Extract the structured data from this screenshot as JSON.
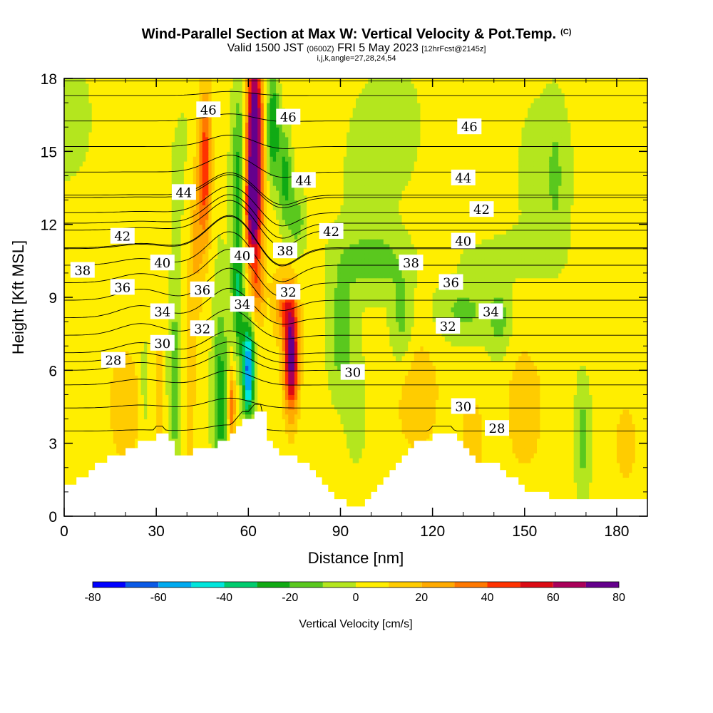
{
  "header": {
    "title": "Wind-Parallel Section at Max W: Vertical Velocity & Pot.Temp.",
    "copyright": "(C)",
    "valid_prefix": "Valid 1500 JST",
    "valid_utc": "(0600Z)",
    "valid_date": "FRI 5 May 2023",
    "forecast": "[12hrFcst@2145z]",
    "params": "i,j,k,angle=27,28,24,54"
  },
  "chart_data": {
    "type": "heatmap",
    "title": "Wind-Parallel Section at Max W: Vertical Velocity & Pot.Temp.",
    "xlabel": "Distance [nm]",
    "ylabel": "Height [Kft MSL]",
    "xlim": [
      0,
      190
    ],
    "ylim": [
      0,
      18
    ],
    "xticks": [
      0,
      30,
      60,
      90,
      120,
      150,
      180
    ],
    "yticks": [
      0,
      3,
      6,
      9,
      12,
      15,
      18
    ],
    "colorbar": {
      "label": "Vertical Velocity [cm/s]",
      "ticks": [
        -80,
        -60,
        -40,
        -20,
        0,
        20,
        40,
        60,
        80
      ],
      "levels": [
        -80,
        -70,
        -60,
        -50,
        -40,
        -30,
        -20,
        -10,
        0,
        10,
        20,
        30,
        40,
        50,
        60,
        70,
        80
      ],
      "colors": [
        "#0000ff",
        "#0a5ae6",
        "#00aaf0",
        "#00e6dc",
        "#00cc6e",
        "#10aa14",
        "#5ac81e",
        "#b4e61e",
        "#ffee00",
        "#ffcc00",
        "#ffaa00",
        "#ff7800",
        "#ff3200",
        "#dc0a14",
        "#aa005a",
        "#64008c"
      ]
    },
    "contour_field": "Potential Temperature",
    "contour_labels": [
      {
        "value": 46,
        "x": 47,
        "y": 16.7
      },
      {
        "value": 46,
        "x": 73,
        "y": 16.4
      },
      {
        "value": 46,
        "x": 132,
        "y": 16.0
      },
      {
        "value": 44,
        "x": 39,
        "y": 13.3
      },
      {
        "value": 44,
        "x": 78,
        "y": 13.8
      },
      {
        "value": 44,
        "x": 130,
        "y": 13.9
      },
      {
        "value": 42,
        "x": 19,
        "y": 11.5
      },
      {
        "value": 42,
        "x": 87,
        "y": 11.7
      },
      {
        "value": 42,
        "x": 136,
        "y": 12.6
      },
      {
        "value": 40,
        "x": 32,
        "y": 10.4
      },
      {
        "value": 40,
        "x": 58,
        "y": 10.7
      },
      {
        "value": 40,
        "x": 130,
        "y": 11.3
      },
      {
        "value": 38,
        "x": 6,
        "y": 10.1
      },
      {
        "value": 38,
        "x": 72,
        "y": 10.9
      },
      {
        "value": 38,
        "x": 113,
        "y": 10.4
      },
      {
        "value": 36,
        "x": 19,
        "y": 9.4
      },
      {
        "value": 36,
        "x": 45,
        "y": 9.3
      },
      {
        "value": 36,
        "x": 126,
        "y": 9.6
      },
      {
        "value": 34,
        "x": 32,
        "y": 8.4
      },
      {
        "value": 34,
        "x": 58,
        "y": 8.7
      },
      {
        "value": 34,
        "x": 139,
        "y": 8.4
      },
      {
        "value": 32,
        "x": 45,
        "y": 7.7
      },
      {
        "value": 32,
        "x": 73,
        "y": 9.2
      },
      {
        "value": 32,
        "x": 125,
        "y": 7.8
      },
      {
        "value": 30,
        "x": 32,
        "y": 7.1
      },
      {
        "value": 30,
        "x": 94,
        "y": 5.9
      },
      {
        "value": 30,
        "x": 130,
        "y": 4.5
      },
      {
        "value": 28,
        "x": 16,
        "y": 6.4
      },
      {
        "value": 28,
        "x": 141,
        "y": 3.6
      }
    ],
    "terrain_kft": {
      "x": [
        0,
        2,
        4,
        6,
        8,
        10,
        12,
        14,
        16,
        18,
        20,
        22,
        24,
        26,
        28,
        30,
        32,
        34,
        36,
        38,
        40,
        42,
        44,
        46,
        48,
        50,
        52,
        54,
        56,
        58,
        60,
        62,
        64,
        66,
        68,
        70,
        72,
        74,
        76,
        78,
        80,
        82,
        84,
        86,
        88,
        90,
        92,
        94,
        96,
        98,
        100,
        102,
        104,
        106,
        108,
        110,
        112,
        114,
        116,
        118,
        120,
        122,
        124,
        126,
        128,
        130,
        132,
        134,
        136,
        138,
        140,
        142,
        144,
        146,
        148,
        150,
        152,
        154,
        156,
        158,
        160,
        162,
        164,
        166,
        168,
        170,
        172,
        174,
        176,
        178,
        180,
        182,
        184,
        186,
        188,
        190
      ],
      "height": [
        1.3,
        1.3,
        1.6,
        1.6,
        1.9,
        2.2,
        2.2,
        2.5,
        2.5,
        2.5,
        2.8,
        2.8,
        3.1,
        3.1,
        3.1,
        3.4,
        3.4,
        3.1,
        2.5,
        2.5,
        2.5,
        2.8,
        2.8,
        2.8,
        2.8,
        3.1,
        3.1,
        3.4,
        3.7,
        4.0,
        4.0,
        4.3,
        4.3,
        3.1,
        2.8,
        2.5,
        2.5,
        2.5,
        2.2,
        2.2,
        1.9,
        1.6,
        1.3,
        1.0,
        0.7,
        0.7,
        0.4,
        0.4,
        0.4,
        0.7,
        1.0,
        1.3,
        1.6,
        1.9,
        2.2,
        2.5,
        2.8,
        3.1,
        3.1,
        3.1,
        3.4,
        3.4,
        3.4,
        3.4,
        3.1,
        2.8,
        2.5,
        2.2,
        2.2,
        2.2,
        2.2,
        1.9,
        1.6,
        1.6,
        1.3,
        1.0,
        1.0,
        1.0,
        1.0,
        0.7,
        0.7,
        0.7,
        0.7,
        0.7,
        0.7,
        0.7,
        0.7,
        0.7,
        0.7,
        0.7,
        0.7,
        0.7,
        0.7,
        0.7,
        0.7,
        1.0
      ]
    }
  }
}
